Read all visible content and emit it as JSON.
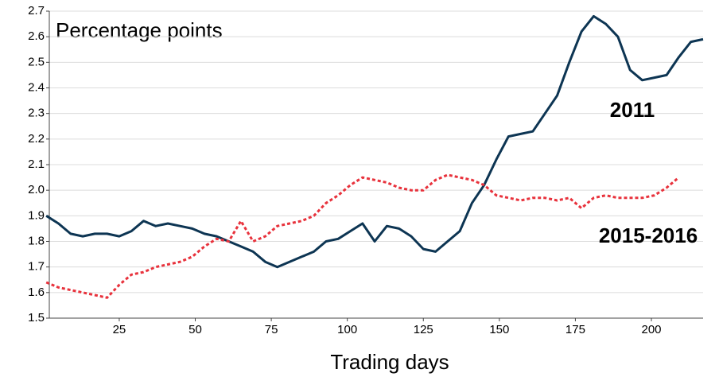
{
  "chart_data": {
    "type": "line",
    "y_label": "Percentage points",
    "x_label": "Trading days",
    "x": [
      1,
      5,
      9,
      13,
      17,
      21,
      25,
      29,
      33,
      37,
      41,
      45,
      49,
      53,
      57,
      61,
      65,
      69,
      73,
      77,
      81,
      85,
      89,
      93,
      97,
      101,
      105,
      109,
      113,
      117,
      121,
      125,
      129,
      133,
      137,
      141,
      145,
      149,
      153,
      157,
      161,
      165,
      169,
      173,
      177,
      181,
      185,
      189,
      193,
      197,
      201,
      205,
      209,
      213,
      217
    ],
    "series": [
      {
        "name": "2011",
        "color": "#0d3553",
        "dashed": false,
        "values": [
          1.9,
          1.87,
          1.83,
          1.82,
          1.83,
          1.83,
          1.82,
          1.84,
          1.88,
          1.86,
          1.87,
          1.86,
          1.85,
          1.83,
          1.82,
          1.8,
          1.78,
          1.76,
          1.72,
          1.7,
          1.72,
          1.74,
          1.76,
          1.8,
          1.81,
          1.84,
          1.87,
          1.8,
          1.86,
          1.85,
          1.82,
          1.77,
          1.76,
          1.8,
          1.84,
          1.95,
          2.02,
          2.12,
          2.21,
          2.22,
          2.23,
          2.3,
          2.37,
          2.5,
          2.62,
          2.68,
          2.65,
          2.6,
          2.47,
          2.43,
          2.44,
          2.45,
          2.52,
          2.58,
          2.59
        ]
      },
      {
        "name": "2015-2016",
        "color": "#e8323c",
        "dashed": true,
        "values": [
          1.64,
          1.62,
          1.61,
          1.6,
          1.59,
          1.58,
          1.63,
          1.67,
          1.68,
          1.7,
          1.71,
          1.72,
          1.74,
          1.78,
          1.81,
          1.8,
          1.88,
          1.8,
          1.82,
          1.86,
          1.87,
          1.88,
          1.9,
          1.95,
          1.98,
          2.02,
          2.05,
          2.04,
          2.03,
          2.01,
          2.0,
          2.0,
          2.04,
          2.06,
          2.05,
          2.04,
          2.02,
          1.98,
          1.97,
          1.96,
          1.97,
          1.97,
          1.96,
          1.97,
          1.93,
          1.97,
          1.98,
          1.97,
          1.97,
          1.97,
          1.98,
          2.01,
          2.05,
          null,
          null
        ]
      }
    ],
    "xlim": [
      2,
      217
    ],
    "xticks": [
      25,
      50,
      75,
      100,
      125,
      150,
      175,
      200
    ],
    "ylim": [
      1.5,
      2.7
    ],
    "yticks": [
      1.5,
      1.6,
      1.7,
      1.8,
      1.9,
      {
        "value": 2,
        "label": "2.0"
      },
      2.1,
      2.2,
      2.3,
      2.4,
      2.5,
      2.6,
      2.7
    ],
    "grid": true
  }
}
